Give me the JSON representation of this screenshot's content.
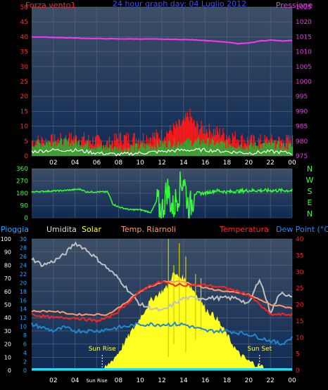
{
  "top_panel": {
    "title": "24 hour graph day: 04 Luglio 2012",
    "left_label": "Forza vento1",
    "right_label": "Pressione",
    "left_ticks": [
      "0",
      "5",
      "10",
      "15",
      "20",
      "25",
      "30",
      "35",
      "40",
      "45",
      "50"
    ],
    "right_ticks": [
      "975",
      "980",
      "985",
      "990",
      "995",
      "1000",
      "1005",
      "1010",
      "1015",
      "1020",
      "1025"
    ]
  },
  "dir_panel": {
    "left_ticks": [
      "0",
      "90",
      "180",
      "270",
      "360"
    ],
    "compass": [
      "N",
      "W",
      "S",
      "E",
      "N"
    ]
  },
  "bottom_panel": {
    "header": {
      "pioggia": "Pioggia",
      "umidita": "Umidita",
      "solar": "Solar",
      "riarnoli": "Temp. Riarnoli",
      "temperatura": "Temperatura",
      "dewpoint": "Dew Point (°C)"
    },
    "ticks_pioggia": [
      "0",
      "10",
      "20",
      "30",
      "40",
      "50",
      "60",
      "70",
      "80",
      "90",
      "100"
    ],
    "ticks_solar": [
      "0",
      "2",
      "4",
      "6",
      "8",
      "10",
      "12",
      "14",
      "16",
      "18",
      "20",
      "22",
      "24",
      "26",
      "28",
      "30"
    ],
    "ticks_right": [
      "0",
      "5",
      "10",
      "15",
      "20",
      "25",
      "30",
      "35",
      "40"
    ],
    "sunrise_label": "Sun Rise",
    "sunset_label": "Sun Set"
  },
  "x_ticks_top": [
    "02",
    "04",
    "06",
    "08",
    "10",
    "12",
    "14",
    "16",
    "18",
    "20",
    "22",
    "00"
  ],
  "x_ticks_bottom": [
    "02",
    "04",
    "Sun Rise",
    "08",
    "10",
    "12",
    "14",
    "16",
    "18",
    "20",
    "22",
    "00"
  ],
  "colors": {
    "pressure": "#ff33ff",
    "gust": "#ff1a1a",
    "wind": "#33aa33",
    "wind_avg": "#ffffff",
    "direction": "#33ff33",
    "humidity": "#c0c0c0",
    "solar": "#ffff22",
    "temperature": "#ff2222",
    "temp_riarnoli": "#ff9966",
    "dewpoint": "#1e88d0",
    "plot_bg_top": "#3d4f66",
    "plot_bg_bottom": "#0f2a55"
  },
  "chart_data": [
    {
      "type": "line",
      "title": "24 hour graph day: 04 Luglio 2012",
      "x_unit": "hour",
      "xlim": [
        0,
        24
      ],
      "ylim_left": [
        0,
        50
      ],
      "ylim_right": [
        975,
        1025
      ],
      "series": [
        {
          "name": "Pressione",
          "axis": "right",
          "x": [
            0,
            2,
            4,
            6,
            8,
            10,
            12,
            14,
            16,
            18,
            19,
            20,
            21,
            22,
            23,
            24
          ],
          "y": [
            1015,
            1014.8,
            1014.6,
            1014.4,
            1014.3,
            1014.3,
            1014.2,
            1014.1,
            1013.8,
            1013.2,
            1012.7,
            1012.9,
            1013.6,
            1013.9,
            1013.6,
            1013.7
          ]
        },
        {
          "name": "Forza vento1",
          "axis": "left",
          "kind": "gust",
          "x": [
            0,
            2,
            4,
            6,
            7,
            8,
            10,
            12,
            13,
            14,
            14.5,
            15,
            16,
            17,
            18,
            19,
            20,
            22,
            24
          ],
          "y": [
            5,
            5,
            6,
            5,
            4,
            6,
            6,
            7,
            9,
            11,
            14,
            10,
            9,
            8,
            7,
            6,
            5,
            5,
            5
          ]
        },
        {
          "name": "wind",
          "axis": "left",
          "kind": "avg",
          "x": [
            0,
            2,
            4,
            6,
            8,
            10,
            12,
            14,
            16,
            18,
            20,
            22,
            24
          ],
          "y": [
            1.5,
            2,
            2,
            1,
            0.5,
            1,
            1.5,
            2,
            2,
            1.5,
            1,
            1.5,
            1
          ]
        }
      ]
    },
    {
      "type": "line",
      "x_unit": "hour",
      "xlim": [
        0,
        24
      ],
      "ylim": [
        0,
        360
      ],
      "series": [
        {
          "name": "direction",
          "x": [
            0,
            3,
            4.5,
            5,
            6,
            7,
            7.5,
            8,
            9,
            10,
            11,
            11.5,
            12,
            12.5,
            13,
            14,
            14.5,
            15,
            16,
            17,
            18,
            20,
            22,
            24
          ],
          "y": [
            190,
            200,
            210,
            190,
            190,
            190,
            100,
            80,
            60,
            60,
            40,
            120,
            40,
            220,
            60,
            300,
            50,
            180,
            180,
            200,
            190,
            200,
            200,
            200
          ]
        }
      ]
    },
    {
      "type": "line",
      "x_unit": "hour",
      "xlim": [
        0,
        24
      ],
      "ylim_pioggia": [
        0,
        100
      ],
      "ylim_solar": [
        0,
        30
      ],
      "ylim_temp": [
        0,
        40
      ],
      "series": [
        {
          "name": "Umidita",
          "axis": "pioggia",
          "x": [
            0,
            1,
            2,
            3,
            4,
            5,
            6,
            8,
            10,
            12,
            14,
            16,
            18,
            19,
            20,
            21,
            22,
            23,
            24
          ],
          "y": [
            85,
            80,
            83,
            88,
            97,
            92,
            85,
            70,
            50,
            45,
            55,
            55,
            55,
            55,
            50,
            70,
            44,
            60,
            55
          ]
        },
        {
          "name": "Solar",
          "axis": "solar",
          "x": [
            0,
            6.5,
            7,
            8,
            9,
            10,
            11,
            12,
            12.5,
            13,
            14,
            15,
            16,
            17,
            18,
            19,
            20,
            21,
            22,
            23,
            24
          ],
          "y": [
            0,
            0,
            1,
            4,
            8,
            12,
            16,
            18,
            19,
            22,
            21,
            18,
            14,
            12,
            8,
            4,
            2,
            1,
            0,
            0,
            0
          ]
        },
        {
          "name": "Temperatura",
          "axis": "temp",
          "x": [
            0,
            2,
            4,
            6,
            7,
            8,
            9,
            10,
            11,
            12,
            13,
            14,
            16,
            18,
            20,
            21,
            22,
            23,
            24
          ],
          "y": [
            17,
            16,
            16,
            15,
            16,
            18,
            21,
            24,
            26,
            27,
            26,
            26,
            26,
            25,
            23,
            20,
            17,
            17,
            17
          ]
        },
        {
          "name": "Temp. Riarnoli",
          "axis": "temp",
          "x": [
            0,
            2,
            4,
            6,
            7,
            8,
            10,
            12,
            14,
            16,
            18,
            20,
            22,
            24
          ],
          "y": [
            18,
            18,
            17,
            17,
            17,
            19,
            24,
            27,
            27,
            25,
            24,
            23,
            20,
            19
          ]
        },
        {
          "name": "Dew Point",
          "axis": "temp",
          "x": [
            0,
            2,
            3,
            4,
            6,
            8,
            10,
            11,
            12,
            14,
            15,
            16,
            18,
            20,
            22,
            23,
            24
          ],
          "y": [
            14,
            12,
            13,
            12,
            12,
            13,
            14,
            14,
            14,
            14,
            13,
            12,
            12,
            11,
            9,
            8,
            10
          ]
        }
      ],
      "sunrise": 6.5,
      "sunset": 21
    }
  ]
}
